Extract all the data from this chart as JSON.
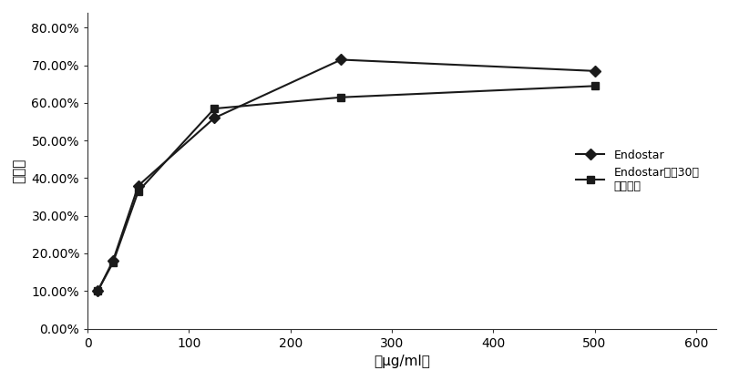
{
  "endostar_x": [
    10,
    25,
    50,
    125,
    250,
    500
  ],
  "endostar_y": [
    0.1,
    0.18,
    0.38,
    0.56,
    0.715,
    0.685
  ],
  "microsphere_x": [
    10,
    25,
    50,
    125,
    250,
    500
  ],
  "microsphere_y": [
    0.1,
    0.175,
    0.365,
    0.585,
    0.615,
    0.645
  ],
  "endostar_label": "Endostar",
  "microsphere_label": "Endostar微琒30天\n释放液．",
  "xlabel": "（μg/ml）",
  "ylabel": "抑制率",
  "xlim": [
    0,
    620
  ],
  "ylim": [
    0.0,
    0.84
  ],
  "yticks": [
    0.0,
    0.1,
    0.2,
    0.3,
    0.4,
    0.5,
    0.6,
    0.7,
    0.8
  ],
  "xticks": [
    0,
    100,
    200,
    300,
    400,
    500,
    600
  ],
  "line_color": "#1a1a1a",
  "background_color": "#ffffff"
}
